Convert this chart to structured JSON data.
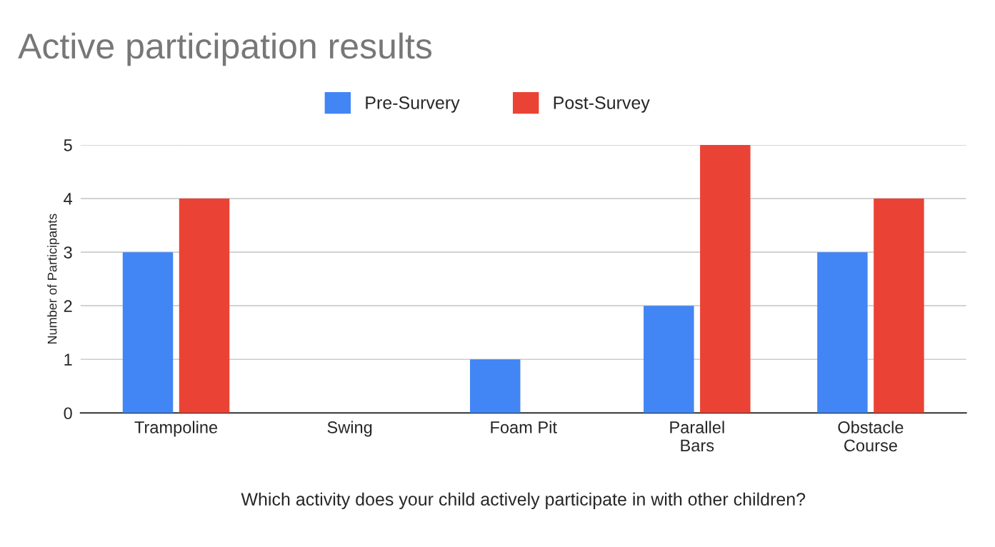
{
  "chart_data": {
    "type": "bar",
    "title": "Active participation results",
    "xlabel": "Which activity does your child actively participate in with other children?",
    "ylabel": "Number of Participants",
    "categories": [
      "Trampoline",
      "Swing",
      "Foam Pit",
      "Parallel\nBars",
      "Obstacle\nCourse"
    ],
    "series": [
      {
        "name": "Pre-Survery",
        "color": "#4285f4",
        "values": [
          3,
          0,
          1,
          2,
          3
        ]
      },
      {
        "name": "Post-Survey",
        "color": "#ea4335",
        "values": [
          4,
          0,
          0,
          5,
          4
        ]
      }
    ],
    "ylim": [
      0,
      5
    ],
    "yticks": [
      0,
      1,
      2,
      3,
      4,
      5
    ],
    "grid": "y",
    "legend": "top"
  }
}
